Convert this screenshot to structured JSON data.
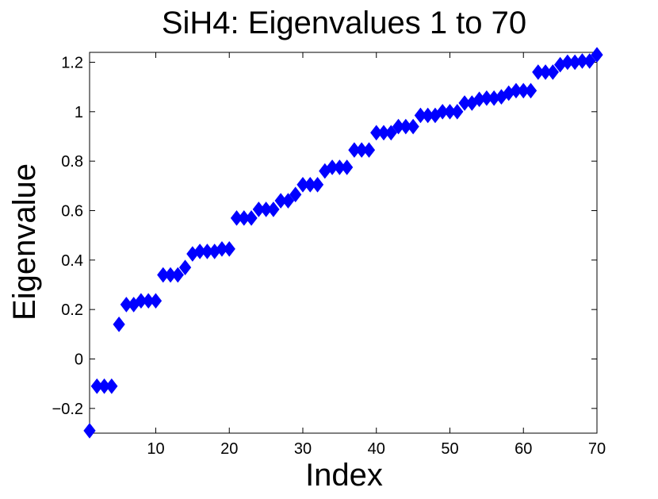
{
  "chart_data": {
    "type": "scatter",
    "title": "SiH4: Eigenvalues 1 to 70",
    "xlabel": "Index",
    "ylabel": "Eigenvalue",
    "xlim": [
      1,
      70
    ],
    "ylim": [
      -0.3,
      1.24
    ],
    "xticks": [
      10,
      20,
      30,
      40,
      50,
      60,
      70
    ],
    "yticks": [
      -0.2,
      0,
      0.2,
      0.4,
      0.6,
      0.8,
      1,
      1.2
    ],
    "ytick_labels": [
      "−0.2",
      "0",
      "0.2",
      "0.4",
      "0.6",
      "0.8",
      "1",
      "1.2"
    ],
    "grid": false,
    "marker": "diamond",
    "color": "#0000ff",
    "series": [
      {
        "x": [
          1,
          2,
          3,
          4,
          5,
          6,
          7,
          8,
          9,
          10,
          11,
          12,
          13,
          14,
          15,
          16,
          17,
          18,
          19,
          20,
          21,
          22,
          23,
          24,
          25,
          26,
          27,
          28,
          29,
          30,
          31,
          32,
          33,
          34,
          35,
          36,
          37,
          38,
          39,
          40,
          41,
          42,
          43,
          44,
          45,
          46,
          47,
          48,
          49,
          50,
          51,
          52,
          53,
          54,
          55,
          56,
          57,
          58,
          59,
          60,
          61,
          62,
          63,
          64,
          65,
          66,
          67,
          68,
          69,
          70
        ],
        "y": [
          -0.29,
          -0.11,
          -0.11,
          -0.11,
          0.14,
          0.22,
          0.22,
          0.235,
          0.235,
          0.235,
          0.34,
          0.34,
          0.34,
          0.37,
          0.425,
          0.435,
          0.435,
          0.435,
          0.445,
          0.445,
          0.57,
          0.57,
          0.57,
          0.605,
          0.605,
          0.605,
          0.64,
          0.64,
          0.665,
          0.705,
          0.705,
          0.705,
          0.76,
          0.775,
          0.775,
          0.775,
          0.845,
          0.845,
          0.845,
          0.915,
          0.915,
          0.915,
          0.94,
          0.94,
          0.94,
          0.985,
          0.985,
          0.985,
          1.0,
          1.0,
          1.0,
          1.035,
          1.035,
          1.05,
          1.055,
          1.055,
          1.06,
          1.075,
          1.085,
          1.085,
          1.085,
          1.16,
          1.16,
          1.16,
          1.19,
          1.2,
          1.2,
          1.205,
          1.205,
          1.23
        ]
      }
    ]
  }
}
